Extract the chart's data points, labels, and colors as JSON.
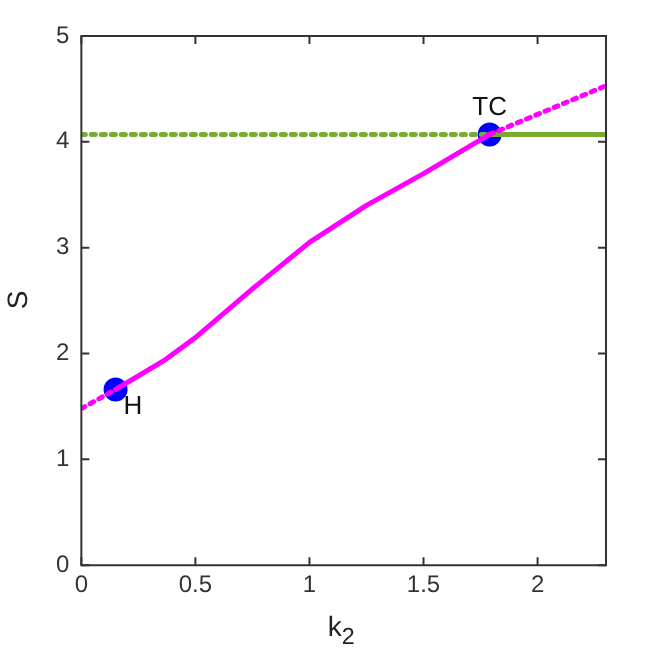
{
  "chart_data": {
    "type": "line",
    "xlabel": "k$_{2}$",
    "ylabel": "S",
    "xlim": [
      0,
      2.3
    ],
    "xticks": [
      0,
      0.5,
      1,
      1.5,
      2
    ],
    "ylim": [
      0,
      5
    ],
    "yticks": [
      0,
      1,
      2,
      3,
      4,
      5
    ],
    "grid": false,
    "legend": false,
    "marker": "none",
    "series": [
      {
        "color": "#ff00ff",
        "line_style": "dotted",
        "x": [
          0,
          0.15
        ],
        "values": [
          1.48,
          1.66
        ]
      },
      {
        "color": "#ff00ff",
        "line_style": "solid",
        "x": [
          0.15,
          0.36,
          0.5,
          0.75,
          1.0,
          1.25,
          1.5,
          1.79
        ],
        "values": [
          1.66,
          1.93,
          2.15,
          2.61,
          3.05,
          3.4,
          3.7,
          4.07
        ]
      },
      {
        "color": "#ff00ff",
        "line_style": "dotted",
        "x": [
          1.79,
          2.3
        ],
        "values": [
          4.07,
          4.53
        ]
      },
      {
        "color": "#77ac30",
        "line_style": "dotted",
        "x": [
          0,
          1.79
        ],
        "values": [
          4.07,
          4.07
        ]
      },
      {
        "color": "#77ac30",
        "line_style": "solid",
        "x": [
          1.79,
          2.3
        ],
        "values": [
          4.07,
          4.07
        ]
      },
      {
        "type": "scatter",
        "color": "#0000ff",
        "marker": "circle",
        "x": [
          0.15,
          1.79
        ],
        "values": [
          1.66,
          4.07
        ]
      }
    ],
    "annotations": [
      {
        "text": "H",
        "x": 0.15,
        "y": 1.66
      },
      {
        "text": "TC",
        "x": 1.79,
        "y": 4.07
      }
    ]
  }
}
